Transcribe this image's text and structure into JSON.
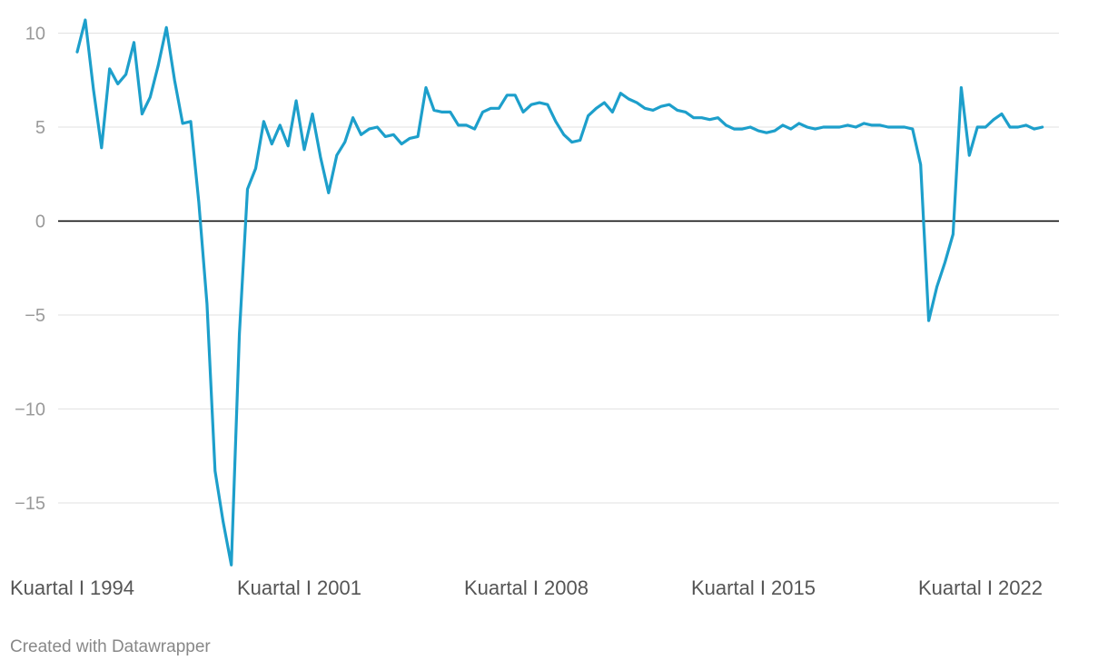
{
  "chart_data": {
    "type": "line",
    "title": "",
    "xlabel": "",
    "ylabel": "",
    "ylim": [
      -18.5,
      11
    ],
    "yticks": [
      10,
      5,
      0,
      -5,
      -10,
      -15
    ],
    "ytick_labels": [
      "10",
      "5",
      "0",
      "−5",
      "−10",
      "−15"
    ],
    "xticks": [
      {
        "index": 0,
        "label": "Kuartal I 1994"
      },
      {
        "index": 28,
        "label": "Kuartal I 2001"
      },
      {
        "index": 56,
        "label": "Kuartal I 2008"
      },
      {
        "index": 84,
        "label": "Kuartal I 2015"
      },
      {
        "index": 112,
        "label": "Kuartal I 2022"
      }
    ],
    "grid": true,
    "zero_line": true,
    "line_color": "#1d9fcb",
    "series": [
      {
        "name": "",
        "values": [
          9.0,
          10.7,
          7.0,
          3.9,
          8.1,
          7.3,
          7.8,
          9.5,
          5.7,
          6.6,
          8.3,
          10.3,
          7.5,
          5.2,
          5.3,
          1.0,
          -4.4,
          -13.3,
          -16.0,
          -18.3,
          -6.0,
          1.7,
          2.8,
          5.3,
          4.1,
          5.1,
          4.0,
          6.4,
          3.8,
          5.7,
          3.4,
          1.5,
          3.5,
          4.2,
          5.5,
          4.6,
          4.9,
          5.0,
          4.5,
          4.6,
          4.1,
          4.4,
          4.5,
          7.1,
          5.9,
          5.8,
          5.8,
          5.1,
          5.1,
          4.9,
          5.8,
          6.0,
          6.0,
          6.7,
          6.7,
          5.8,
          6.2,
          6.3,
          6.2,
          5.3,
          4.6,
          4.2,
          4.3,
          5.6,
          6.0,
          6.3,
          5.8,
          6.8,
          6.5,
          6.3,
          6.0,
          5.9,
          6.1,
          6.2,
          5.9,
          5.8,
          5.5,
          5.5,
          5.4,
          5.5,
          5.1,
          4.9,
          4.9,
          5.0,
          4.8,
          4.7,
          4.8,
          5.1,
          4.9,
          5.2,
          5.0,
          4.9,
          5.0,
          5.0,
          5.0,
          5.1,
          5.0,
          5.2,
          5.1,
          5.1,
          5.0,
          5.0,
          5.0,
          4.9,
          3.0,
          -5.3,
          -3.5,
          -2.2,
          -0.7,
          7.1,
          3.5,
          5.0,
          5.0,
          5.4,
          5.7,
          5.0,
          5.0,
          5.1,
          4.9,
          5.0
        ]
      }
    ]
  },
  "credit": "Created with Datawrapper"
}
